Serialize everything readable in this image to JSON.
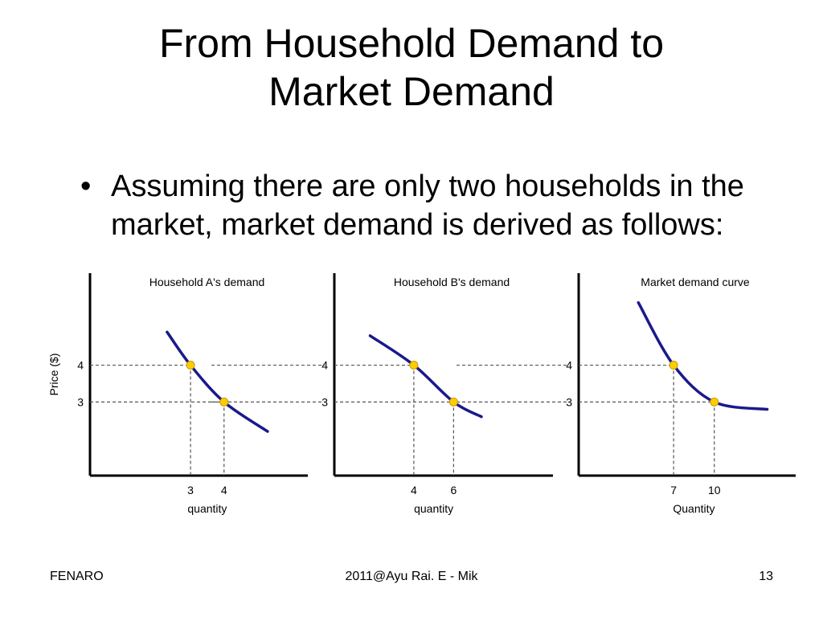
{
  "slide": {
    "title_line1": "From Household Demand to",
    "title_line2": "Market Demand",
    "bullet_symbol": "•",
    "bullet_text": "Assuming there are only two households in the market, market demand is derived as follows:"
  },
  "footer": {
    "left": "FENARO",
    "center": "2011@Ayu Rai. E - Mik",
    "right": "13"
  },
  "colors": {
    "curve": "#1a1a8c",
    "point": "#ffcc00",
    "axis": "#000000",
    "guide": "#555555"
  },
  "chart_data": [
    {
      "type": "line",
      "title": "Household A's demand",
      "xlabel": "quantity",
      "ylabel": "Price ($)",
      "xlim": [
        0,
        6.5
      ],
      "ylim": [
        1,
        6.5
      ],
      "x_ticks": [
        3,
        4
      ],
      "y_ticks": [
        3,
        4
      ],
      "series": [
        {
          "x": [
            2.3,
            3,
            4,
            5.3
          ],
          "y": [
            4.9,
            4,
            3,
            2.2
          ]
        }
      ],
      "points": [
        {
          "x": 3,
          "y": 4
        },
        {
          "x": 4,
          "y": 3
        }
      ]
    },
    {
      "type": "line",
      "title": "Household B's demand",
      "xlabel": "quantity",
      "ylabel": "",
      "xlim": [
        0,
        11
      ],
      "ylim": [
        1,
        6.5
      ],
      "x_ticks": [
        4,
        6
      ],
      "y_ticks": [
        3,
        4
      ],
      "series": [
        {
          "x": [
            1.8,
            4,
            6,
            7.4
          ],
          "y": [
            4.8,
            4,
            3,
            2.6
          ]
        }
      ],
      "points": [
        {
          "x": 4,
          "y": 4
        },
        {
          "x": 6,
          "y": 3
        }
      ]
    },
    {
      "type": "line",
      "title": "Market demand curve",
      "xlabel": "Quantity",
      "ylabel": "",
      "xlim": [
        0,
        16
      ],
      "ylim": [
        1,
        6.5
      ],
      "x_ticks": [
        7,
        10
      ],
      "y_ticks": [
        3,
        4
      ],
      "series": [
        {
          "x": [
            4.4,
            7,
            10,
            13.9
          ],
          "y": [
            5.7,
            4,
            3,
            2.8
          ]
        }
      ],
      "points": [
        {
          "x": 7,
          "y": 4
        },
        {
          "x": 10,
          "y": 3
        }
      ]
    }
  ]
}
